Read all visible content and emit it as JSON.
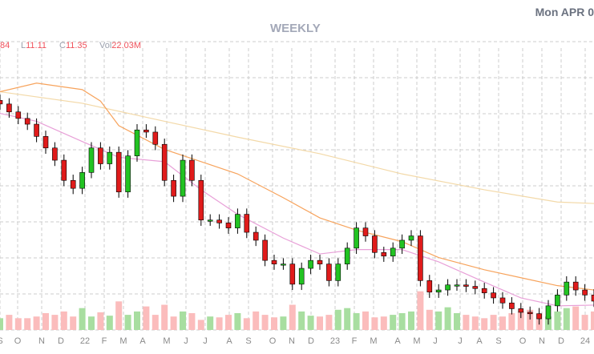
{
  "header": {
    "date": "Mon APR 0",
    "period": "WEEKLY",
    "high_partial": "84",
    "low_label": "L",
    "low_value": "11.11",
    "close_label": "C",
    "close_value": "11.35",
    "vol_label": "Vol",
    "vol_value": "22.03M"
  },
  "colors": {
    "up": "#22c322",
    "down": "#e01b1b",
    "vol_up": "#a8dea0",
    "vol_down": "#fbbcbc",
    "ma_orange": "#f7a35c",
    "ma_pink": "#e8a0d8",
    "ma_beige": "#f3d9a8",
    "grid": "#cccccc"
  },
  "chart_data": {
    "type": "candlestick",
    "title": "WEEKLY",
    "grid": true,
    "x_tick_labels": [
      "S",
      "O",
      "N",
      "D",
      "22",
      "F",
      "M",
      "A",
      "M",
      "J",
      "J",
      "A",
      "S",
      "O",
      "N",
      "D",
      "23",
      "F",
      "M",
      "A",
      "M",
      "J",
      "J",
      "A",
      "S",
      "O",
      "N",
      "D",
      "24"
    ],
    "closes": [
      38.7,
      37.6,
      36.7,
      35.9,
      34.2,
      32.6,
      30.9,
      28.1,
      27.0,
      29.2,
      32.6,
      30.4,
      32.0,
      26.5,
      31.5,
      35.1,
      34.8,
      33.1,
      28.1,
      25.9,
      30.9,
      28.1,
      22.6,
      22.6,
      22.2,
      21.5,
      23.4,
      20.9,
      19.8,
      17.0,
      16.5,
      16.5,
      13.7,
      15.9,
      17.0,
      16.5,
      14.2,
      16.5,
      18.7,
      21.5,
      20.4,
      18.1,
      17.6,
      18.7,
      19.8,
      20.4,
      14.2,
      12.6,
      12.9,
      13.6,
      13.6,
      13.4,
      13.1,
      12.5,
      11.8,
      11.1,
      10.3,
      9.8,
      9.6,
      8.9,
      10.7,
      12.2,
      14.0,
      12.9,
      12.2,
      11.35
    ],
    "volumes_m": [
      14,
      18,
      14,
      14,
      16,
      20,
      18,
      22,
      16,
      26,
      16,
      21,
      17,
      34,
      18,
      22,
      28,
      18,
      30,
      16,
      22,
      20,
      12,
      16,
      15,
      18,
      20,
      14,
      22,
      18,
      15,
      16,
      30,
      22,
      17,
      16,
      18,
      24,
      26,
      20,
      22,
      15,
      16,
      18,
      20,
      22,
      46,
      24,
      22,
      27,
      20,
      18,
      16,
      14,
      18,
      16,
      20,
      22,
      24,
      20,
      16,
      22,
      26,
      28,
      18,
      22
    ],
    "ma_orange": [
      [
        0,
        40.4
      ],
      [
        4,
        41.6
      ],
      [
        9,
        40.7
      ],
      [
        11,
        39.1
      ],
      [
        13,
        35.7
      ],
      [
        18,
        32.4
      ],
      [
        22,
        30.7
      ],
      [
        26,
        29.0
      ],
      [
        31,
        25.7
      ],
      [
        35,
        22.9
      ],
      [
        39,
        21.2
      ],
      [
        44,
        19.6
      ],
      [
        48,
        17.4
      ],
      [
        53,
        15.7
      ],
      [
        57,
        14.6
      ],
      [
        61,
        13.5
      ],
      [
        65,
        12.9
      ]
    ],
    "ma_pink": [
      [
        0,
        37.4
      ],
      [
        4,
        36.3
      ],
      [
        9,
        33.5
      ],
      [
        13,
        31.3
      ],
      [
        18,
        30.7
      ],
      [
        22,
        26.8
      ],
      [
        26,
        23.4
      ],
      [
        31,
        20.1
      ],
      [
        35,
        17.9
      ],
      [
        39,
        18.5
      ],
      [
        44,
        18.5
      ],
      [
        48,
        16.8
      ],
      [
        53,
        14.0
      ],
      [
        57,
        11.8
      ],
      [
        61,
        10.7
      ],
      [
        65,
        10.8
      ]
    ],
    "ma_beige": [
      [
        0,
        40.4
      ],
      [
        9,
        38.8
      ],
      [
        18,
        36.3
      ],
      [
        26,
        34.1
      ],
      [
        35,
        31.8
      ],
      [
        44,
        29.0
      ],
      [
        53,
        26.8
      ],
      [
        61,
        25.1
      ],
      [
        65,
        24.9
      ]
    ]
  }
}
